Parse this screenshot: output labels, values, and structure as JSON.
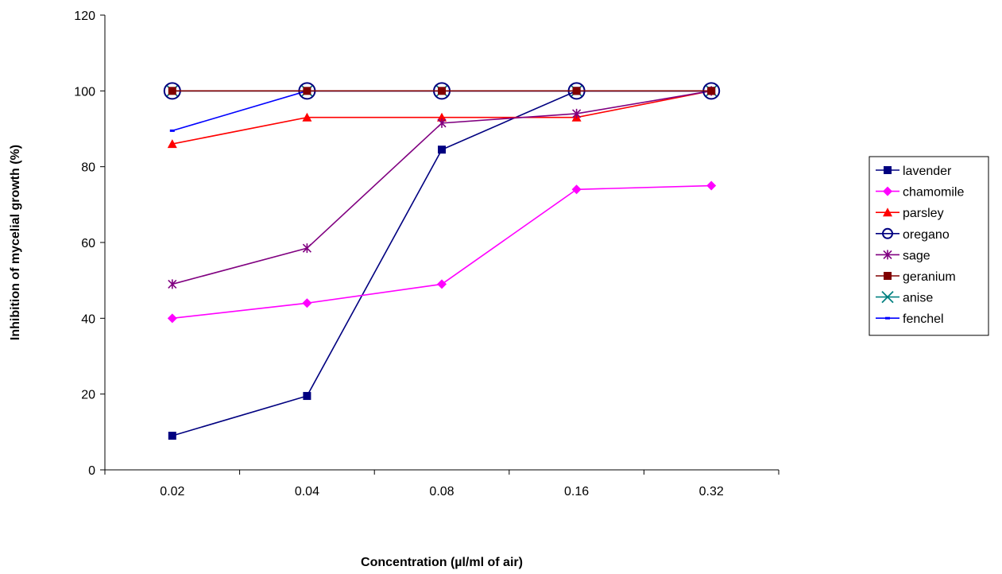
{
  "chart_data": {
    "type": "line",
    "title": "",
    "xlabel": "Concentration (µl/ml of air)",
    "ylabel": "Inhibition of mycelial growth (%)",
    "categories": [
      "0.02",
      "0.04",
      "0.08",
      "0.16",
      "0.32"
    ],
    "yticks": [
      "0",
      "20",
      "40",
      "60",
      "80",
      "100",
      "120"
    ],
    "ylim": [
      0,
      120
    ],
    "grid": false,
    "legend_position": "right",
    "series": [
      {
        "name": "lavender",
        "values": [
          9,
          19.5,
          84.5,
          100,
          100
        ],
        "color": "#000080",
        "marker": "square"
      },
      {
        "name": "chamomile",
        "values": [
          40,
          44,
          49,
          74,
          75
        ],
        "color": "#ff00ff",
        "marker": "diamond"
      },
      {
        "name": "parsley",
        "values": [
          86,
          93,
          93,
          93,
          100
        ],
        "color": "#ff0000",
        "marker": "triangle"
      },
      {
        "name": "oregano",
        "values": [
          100,
          100,
          100,
          100,
          100
        ],
        "color": "#000080",
        "marker": "circle"
      },
      {
        "name": "sage",
        "values": [
          49,
          58.5,
          91.5,
          94,
          100
        ],
        "color": "#800080",
        "marker": "star"
      },
      {
        "name": "geranium",
        "values": [
          100,
          100,
          100,
          100,
          100
        ],
        "color": "#800000",
        "marker": "square"
      },
      {
        "name": "anise",
        "values": [
          100,
          100,
          100,
          100,
          100
        ],
        "color": "#008080",
        "marker": "x"
      },
      {
        "name": "fenchel",
        "values": [
          89.5,
          100,
          100,
          100,
          100
        ],
        "color": "#0000ff",
        "marker": "dash"
      }
    ]
  }
}
